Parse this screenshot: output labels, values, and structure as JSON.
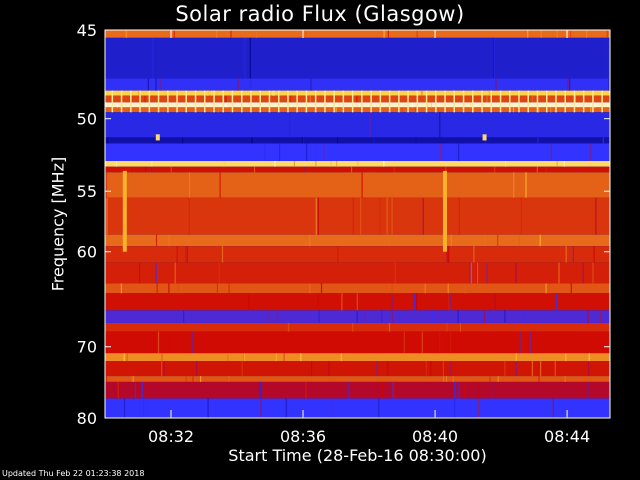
{
  "chart_data": {
    "type": "heatmap",
    "title": "Solar radio Flux (Glasgow)",
    "xlabel": "Start Time (28-Feb-16 08:30:00)",
    "ylabel": "Frequency [MHz]",
    "xlim_minutes": [
      0,
      15.3
    ],
    "x_ticks": [
      {
        "label": "08:32",
        "minutes": 2
      },
      {
        "label": "08:36",
        "minutes": 6
      },
      {
        "label": "08:40",
        "minutes": 10
      },
      {
        "label": "08:44",
        "minutes": 14
      }
    ],
    "ylim_mhz": [
      45,
      80
    ],
    "y_scale": "reciprocal",
    "y_ticks": [
      45,
      50,
      55,
      60,
      70,
      80
    ],
    "colors": {
      "background": "#000000",
      "axis": "#ffffff",
      "low": "#00007f",
      "mid_low": "#3333ff",
      "mid": "#cc0000",
      "high": "#ffcc33",
      "max": "#ffffff"
    },
    "bands": [
      {
        "from_mhz": 45.0,
        "to_mhz": 45.4,
        "level": 0.62
      },
      {
        "from_mhz": 45.4,
        "to_mhz": 47.6,
        "level": 0.18
      },
      {
        "from_mhz": 47.6,
        "to_mhz": 48.3,
        "level": 0.28
      },
      {
        "from_mhz": 48.3,
        "to_mhz": 48.6,
        "level": 0.82
      },
      {
        "from_mhz": 48.6,
        "to_mhz": 49.0,
        "level": 0.55
      },
      {
        "from_mhz": 49.0,
        "to_mhz": 49.3,
        "level": 0.95
      },
      {
        "from_mhz": 49.3,
        "to_mhz": 49.6,
        "level": 0.6
      },
      {
        "from_mhz": 49.6,
        "to_mhz": 51.2,
        "level": 0.24
      },
      {
        "from_mhz": 51.2,
        "to_mhz": 51.6,
        "level": 0.1
      },
      {
        "from_mhz": 51.6,
        "to_mhz": 52.8,
        "level": 0.3
      },
      {
        "from_mhz": 52.8,
        "to_mhz": 53.2,
        "level": 0.85
      },
      {
        "from_mhz": 53.2,
        "to_mhz": 53.6,
        "level": 0.45
      },
      {
        "from_mhz": 53.6,
        "to_mhz": 55.5,
        "level": 0.6
      },
      {
        "from_mhz": 55.5,
        "to_mhz": 58.5,
        "level": 0.52
      },
      {
        "from_mhz": 58.5,
        "to_mhz": 59.5,
        "level": 0.62
      },
      {
        "from_mhz": 59.5,
        "to_mhz": 61.0,
        "level": 0.5
      },
      {
        "from_mhz": 61.0,
        "to_mhz": 63.0,
        "level": 0.48
      },
      {
        "from_mhz": 63.0,
        "to_mhz": 64.0,
        "level": 0.58
      },
      {
        "from_mhz": 64.0,
        "to_mhz": 65.8,
        "level": 0.45
      },
      {
        "from_mhz": 65.8,
        "to_mhz": 67.2,
        "level": 0.32
      },
      {
        "from_mhz": 67.2,
        "to_mhz": 68.2,
        "level": 0.5
      },
      {
        "from_mhz": 68.2,
        "to_mhz": 70.8,
        "level": 0.44
      },
      {
        "from_mhz": 70.8,
        "to_mhz": 71.8,
        "level": 0.68
      },
      {
        "from_mhz": 71.8,
        "to_mhz": 73.8,
        "level": 0.46
      },
      {
        "from_mhz": 73.8,
        "to_mhz": 74.6,
        "level": 0.58
      },
      {
        "from_mhz": 74.6,
        "to_mhz": 77.0,
        "level": 0.4
      },
      {
        "from_mhz": 77.0,
        "to_mhz": 80.0,
        "level": 0.3
      }
    ],
    "bursts": [
      {
        "minutes": 0.6,
        "from_mhz": 53.5,
        "to_mhz": 60.0,
        "level": 0.75
      },
      {
        "minutes": 10.3,
        "from_mhz": 53.5,
        "to_mhz": 60.0,
        "level": 0.75
      },
      {
        "minutes": 1.6,
        "from_mhz": 51.0,
        "to_mhz": 51.4,
        "level": 0.85
      },
      {
        "minutes": 11.5,
        "from_mhz": 51.0,
        "to_mhz": 51.4,
        "level": 0.85
      }
    ]
  },
  "footer": "Updated Thu Feb 22 01:23:38 2018"
}
